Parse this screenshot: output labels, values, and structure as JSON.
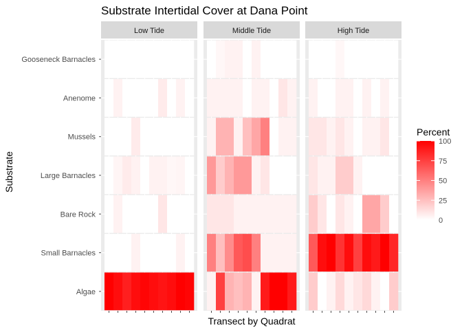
{
  "chart_data": {
    "type": "heatmap",
    "title": "Substrate Intertidal Cover at Dana Point",
    "xlabel": "Transect by Quadrat",
    "ylabel": "Substrate",
    "facets": [
      "Low Tide",
      "Middle Tide",
      "High Tide"
    ],
    "substrates": [
      "Gooseneck Barnacles",
      "Anenome",
      "Mussels",
      "Large Barnacles",
      "Bare Rock",
      "Small Barnacles",
      "Algae"
    ],
    "columns_per_facet": 10,
    "values": {
      "Low Tide": {
        "Gooseneck Barnacles": [
          0,
          0,
          0,
          0,
          0,
          0,
          0,
          0,
          0,
          0
        ],
        "Anenome": [
          0,
          5,
          0,
          0,
          0,
          0,
          8,
          0,
          5,
          0
        ],
        "Mussels": [
          0,
          0,
          0,
          8,
          0,
          0,
          0,
          0,
          0,
          0
        ],
        "Large Barnacles": [
          0,
          4,
          8,
          5,
          0,
          5,
          5,
          3,
          4,
          0
        ],
        "Bare Rock": [
          0,
          5,
          0,
          0,
          0,
          0,
          10,
          0,
          0,
          0
        ],
        "Small Barnacles": [
          0,
          0,
          0,
          5,
          0,
          0,
          0,
          0,
          5,
          0
        ],
        "Algae": [
          100,
          95,
          88,
          95,
          98,
          95,
          92,
          95,
          100,
          98
        ]
      },
      "Middle Tide": {
        "Gooseneck Barnacles": [
          0,
          3,
          5,
          5,
          0,
          5,
          0,
          0,
          0,
          0
        ],
        "Anenome": [
          5,
          5,
          5,
          5,
          0,
          5,
          5,
          0,
          10,
          5
        ],
        "Mussels": [
          5,
          30,
          30,
          5,
          25,
          35,
          50,
          0,
          5,
          5
        ],
        "Large Barnacles": [
          40,
          20,
          30,
          40,
          40,
          5,
          10,
          0,
          0,
          0
        ],
        "Bare Rock": [
          10,
          10,
          10,
          5,
          5,
          5,
          5,
          5,
          5,
          5
        ],
        "Small Barnacles": [
          50,
          25,
          45,
          65,
          70,
          50,
          5,
          5,
          5,
          5
        ],
        "Algae": [
          5,
          75,
          30,
          25,
          30,
          5,
          90,
          100,
          100,
          90
        ]
      },
      "High Tide": {
        "Gooseneck Barnacles": [
          0,
          0,
          0,
          3,
          0,
          0,
          0,
          0,
          0,
          0
        ],
        "Anenome": [
          5,
          0,
          0,
          5,
          5,
          0,
          5,
          0,
          5,
          0
        ],
        "Mussels": [
          10,
          10,
          5,
          10,
          5,
          0,
          5,
          5,
          10,
          0
        ],
        "Large Barnacles": [
          10,
          5,
          5,
          20,
          20,
          5,
          0,
          0,
          0,
          0
        ],
        "Bare Rock": [
          20,
          10,
          0,
          10,
          5,
          0,
          35,
          35,
          20,
          0
        ],
        "Small Barnacles": [
          65,
          95,
          100,
          80,
          95,
          75,
          95,
          90,
          100,
          85
        ],
        "Algae": [
          20,
          0,
          5,
          15,
          5,
          10,
          15,
          5,
          0,
          20
        ]
      }
    },
    "legend": {
      "title": "Percent",
      "ticks": [
        "100",
        "75",
        "50",
        "25",
        "0"
      ],
      "range": [
        0,
        100
      ],
      "low_color": "#ffffff",
      "high_color": "#ff0000",
      "placement": "right"
    },
    "grid": true
  }
}
